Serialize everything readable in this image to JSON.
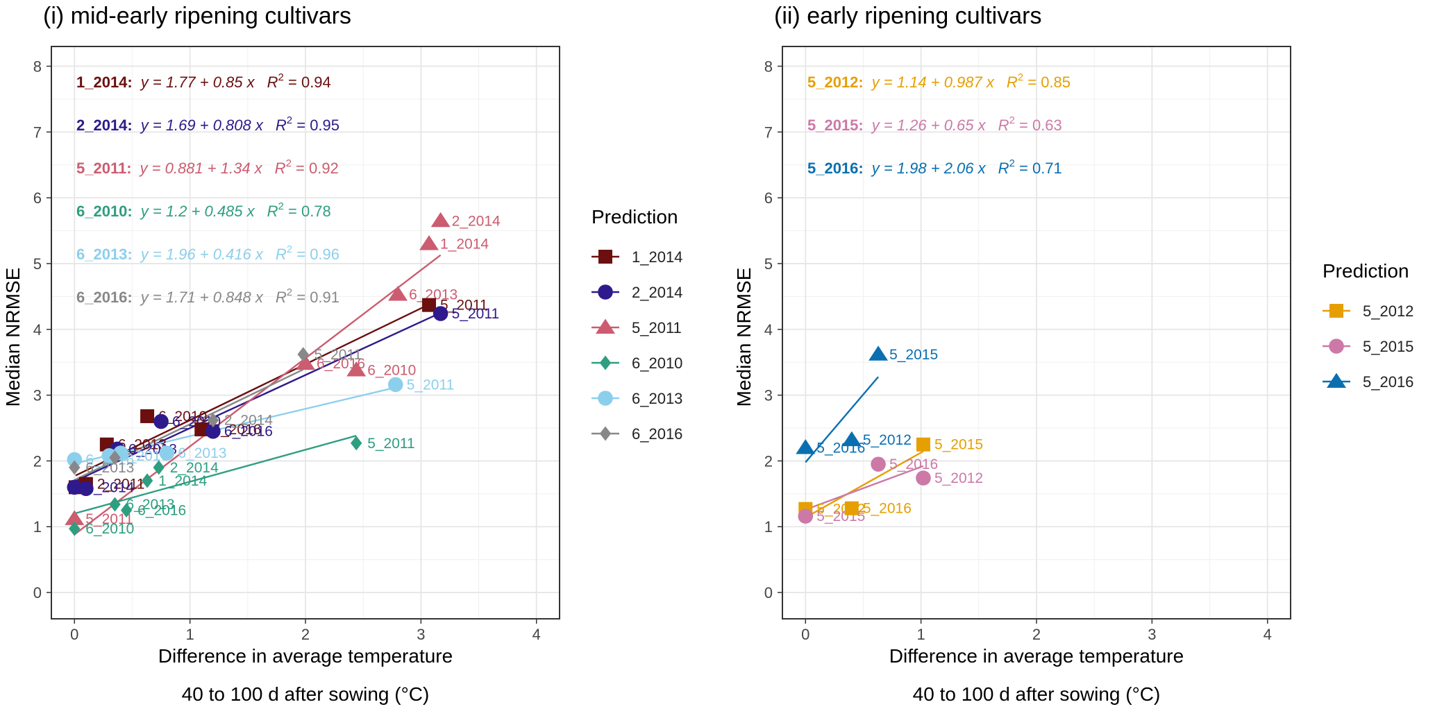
{
  "chart_data": [
    {
      "type": "scatter",
      "title": "(i) mid-early ripening cultivars",
      "xlabel": "Difference in average temperature",
      "xlabel2": "40 to 100 d after sowing (°C)",
      "ylabel": "Median NRMSE",
      "xlim": [
        -0.2,
        4.2
      ],
      "ylim": [
        -0.4,
        8.3
      ],
      "xticks": [
        "0",
        "1",
        "2",
        "3",
        "4"
      ],
      "yticks": [
        "0",
        "1",
        "2",
        "3",
        "4",
        "5",
        "6",
        "7",
        "8"
      ],
      "legend_title": "Prediction",
      "series": [
        {
          "name": "1_2014",
          "color": "#6b0f0f",
          "shape": "square",
          "eq_key": "1_2014:",
          "eq_text": "y = 1.77 + 0.85 x",
          "r2": "0.94",
          "intercept": 1.77,
          "slope": 0.85,
          "points": [
            {
              "x": 0.01,
              "y": 1.6,
              "label": ""
            },
            {
              "x": 0.1,
              "y": 1.65,
              "label": "2_2011"
            },
            {
              "x": 0.28,
              "y": 2.25,
              "label": "6_2013"
            },
            {
              "x": 0.63,
              "y": 2.68,
              "label": "6_2010"
            },
            {
              "x": 1.1,
              "y": 2.48,
              "label": "6_2016"
            },
            {
              "x": 3.07,
              "y": 4.37,
              "label": "5_2011"
            }
          ]
        },
        {
          "name": "2_2014",
          "color": "#2e1a8c",
          "shape": "circle",
          "eq_key": "2_2014:",
          "eq_text": "y = 1.69 + 0.808 x",
          "r2": "0.95",
          "intercept": 1.69,
          "slope": 0.808,
          "points": [
            {
              "x": 0.0,
              "y": 1.6,
              "label": "1_2014"
            },
            {
              "x": 0.1,
              "y": 1.58,
              "label": ""
            },
            {
              "x": 0.37,
              "y": 2.18,
              "label": "6_2013"
            },
            {
              "x": 0.75,
              "y": 2.6,
              "label": "6_2010"
            },
            {
              "x": 1.2,
              "y": 2.45,
              "label": "6_2016"
            },
            {
              "x": 3.17,
              "y": 4.24,
              "label": "5_2011"
            }
          ]
        },
        {
          "name": "5_2011",
          "color": "#cc5c70",
          "shape": "triangle",
          "eq_key": "5_2011:",
          "eq_text": "y = 0.881 + 1.34 x",
          "r2": "0.92",
          "intercept": 0.881,
          "slope": 1.34,
          "points": [
            {
              "x": 0.0,
              "y": 1.12,
              "label": "5_2011"
            },
            {
              "x": 2.0,
              "y": 3.48,
              "label": "6_2016"
            },
            {
              "x": 2.44,
              "y": 3.38,
              "label": "6_2010"
            },
            {
              "x": 2.8,
              "y": 4.53,
              "label": "6_2013"
            },
            {
              "x": 3.07,
              "y": 5.3,
              "label": "1_2014"
            },
            {
              "x": 3.17,
              "y": 5.65,
              "label": "2_2014"
            }
          ]
        },
        {
          "name": "6_2010",
          "color": "#2e9e80",
          "shape": "diamond",
          "eq_key": "6_2010:",
          "eq_text": "y = 1.2 + 0.485 x",
          "r2": "0.78",
          "intercept": 1.2,
          "slope": 0.485,
          "points": [
            {
              "x": 0.0,
              "y": 0.97,
              "label": "6_2010"
            },
            {
              "x": 0.35,
              "y": 1.34,
              "label": "6_2013"
            },
            {
              "x": 0.45,
              "y": 1.25,
              "label": "6_2016"
            },
            {
              "x": 0.63,
              "y": 1.7,
              "label": "1_2014"
            },
            {
              "x": 0.73,
              "y": 1.9,
              "label": "2_2014"
            },
            {
              "x": 2.44,
              "y": 2.27,
              "label": "5_2011"
            }
          ]
        },
        {
          "name": "6_2013",
          "color": "#8ccfec",
          "shape": "circle",
          "eq_key": "6_2013:",
          "eq_text": "y = 1.96 + 0.416 x",
          "r2": "0.96",
          "intercept": 1.96,
          "slope": 0.416,
          "points": [
            {
              "x": 0.0,
              "y": 2.02,
              "label": "6_2016"
            },
            {
              "x": 0.3,
              "y": 2.08,
              "label": "6_2010"
            },
            {
              "x": 0.4,
              "y": 2.12,
              "label": ""
            },
            {
              "x": 0.8,
              "y": 2.12,
              "label": "6_2013"
            },
            {
              "x": 2.78,
              "y": 3.16,
              "label": "5_2011"
            }
          ]
        },
        {
          "name": "6_2016",
          "color": "#888888",
          "shape": "diamond",
          "eq_key": "6_2016:",
          "eq_text": "y = 1.71 + 0.848 x",
          "r2": "0.91",
          "intercept": 1.71,
          "slope": 0.848,
          "points": [
            {
              "x": 0.0,
              "y": 1.9,
              "label": "6_2013"
            },
            {
              "x": 0.35,
              "y": 2.05,
              "label": ""
            },
            {
              "x": 1.2,
              "y": 2.62,
              "label": "2_2014"
            },
            {
              "x": 1.98,
              "y": 3.62,
              "label": "5_2011"
            }
          ]
        }
      ]
    },
    {
      "type": "scatter",
      "title": "(ii) early ripening cultivars",
      "xlabel": "Difference in average temperature",
      "xlabel2": "40 to 100 d after sowing (°C)",
      "ylabel": "Median NRMSE",
      "xlim": [
        -0.2,
        4.2
      ],
      "ylim": [
        -0.4,
        8.3
      ],
      "xticks": [
        "0",
        "1",
        "2",
        "3",
        "4"
      ],
      "yticks": [
        "0",
        "1",
        "2",
        "3",
        "4",
        "5",
        "6",
        "7",
        "8"
      ],
      "legend_title": "Prediction",
      "series": [
        {
          "name": "5_2012",
          "color": "#e69f00",
          "shape": "square",
          "eq_key": "5_2012:",
          "eq_text": "y = 1.14 + 0.987 x",
          "r2": "0.85",
          "intercept": 1.14,
          "slope": 0.987,
          "points": [
            {
              "x": 0.0,
              "y": 1.27,
              "label": "5_2012"
            },
            {
              "x": 0.4,
              "y": 1.28,
              "label": "5_2016"
            },
            {
              "x": 1.02,
              "y": 2.25,
              "label": "5_2015"
            }
          ]
        },
        {
          "name": "5_2015",
          "color": "#cc79a7",
          "shape": "circle",
          "eq_key": "5_2015:",
          "eq_text": "y = 1.26 + 0.65 x",
          "r2": "0.63",
          "intercept": 1.26,
          "slope": 0.65,
          "points": [
            {
              "x": 0.0,
              "y": 1.16,
              "label": "5_2015"
            },
            {
              "x": 0.63,
              "y": 1.95,
              "label": "5_2016"
            },
            {
              "x": 1.02,
              "y": 1.74,
              "label": "5_2012"
            }
          ]
        },
        {
          "name": "5_2016",
          "color": "#0a6fb0",
          "shape": "triangle",
          "eq_key": "5_2016:",
          "eq_text": "y = 1.98 + 2.06 x",
          "r2": "0.71",
          "intercept": 1.98,
          "slope": 2.06,
          "points": [
            {
              "x": 0.0,
              "y": 2.2,
              "label": "5_2016"
            },
            {
              "x": 0.4,
              "y": 2.32,
              "label": "5_2012"
            },
            {
              "x": 0.63,
              "y": 3.62,
              "label": "5_2015"
            }
          ]
        }
      ]
    }
  ]
}
